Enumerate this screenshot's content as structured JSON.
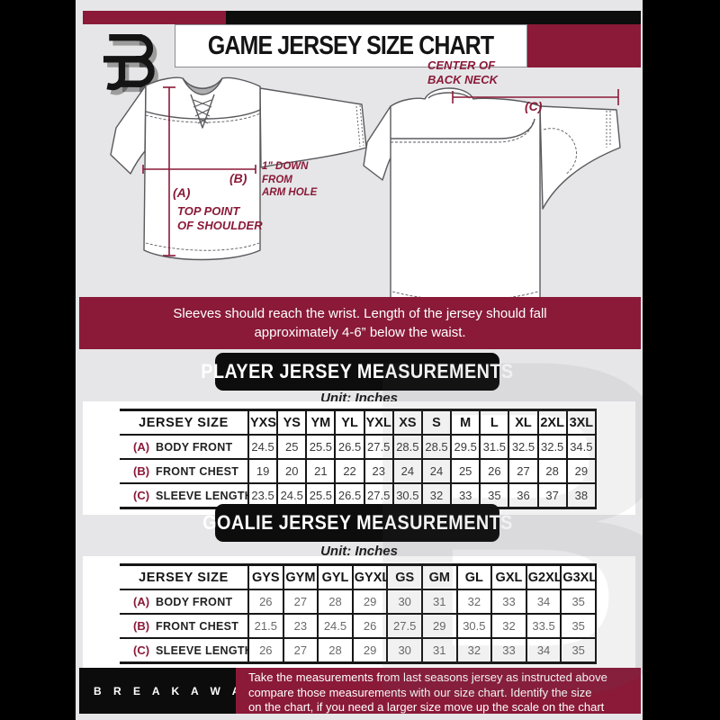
{
  "colors": {
    "maroon": "#8a1a38",
    "ink": "#0d0d0d",
    "background_gray": "#e6e6e8",
    "table_line": "#161616"
  },
  "header": {
    "title": "GAME JERSEY SIZE CHART",
    "logo": "breakaway-b-icon"
  },
  "diagram": {
    "front": {
      "a_label": "(A)",
      "a_caption_lines": [
        "TOP POINT",
        "OF SHOULDER"
      ],
      "b_label": "(B)",
      "b_caption_lines": [
        "1\" DOWN",
        "FROM",
        "ARM HOLE"
      ]
    },
    "back": {
      "c_label": "(C)",
      "c_caption_lines": [
        "CENTER OF",
        "BACK NECK"
      ]
    }
  },
  "notice_banner": {
    "lines": [
      "Sleeves should reach the wrist. Length of the jersey should fall",
      "approximately 4-6” below the waist."
    ]
  },
  "player_table": {
    "title": "PLAYER JERSEY MEASUREMENTS",
    "unit": "Unit: Inches",
    "size_header": "JERSEY SIZE",
    "sizes": [
      "YXS",
      "YS",
      "YM",
      "YL",
      "YXL",
      "XS",
      "S",
      "M",
      "L",
      "XL",
      "2XL",
      "3XL"
    ],
    "rows": [
      {
        "key": "(A)",
        "label": "BODY FRONT",
        "values": [
          "24.5",
          "25",
          "25.5",
          "26.5",
          "27.5",
          "28.5",
          "28.5",
          "29.5",
          "31.5",
          "32.5",
          "32.5",
          "34.5"
        ]
      },
      {
        "key": "(B)",
        "label": "FRONT CHEST",
        "values": [
          "19",
          "20",
          "21",
          "22",
          "23",
          "24",
          "24",
          "25",
          "26",
          "27",
          "28",
          "29"
        ]
      },
      {
        "key": "(C)",
        "label": "SLEEVE LENGTH",
        "values": [
          "23.5",
          "24.5",
          "25.5",
          "26.5",
          "27.5",
          "30.5",
          "32",
          "33",
          "35",
          "36",
          "37",
          "38"
        ]
      }
    ]
  },
  "goalie_table": {
    "title": "GOALIE JERSEY MEASUREMENTS",
    "unit": "Unit: Inches",
    "size_header": "JERSEY SIZE",
    "sizes": [
      "GYS",
      "GYM",
      "GYL",
      "GYXL",
      "GS",
      "GM",
      "GL",
      "GXL",
      "G2XL",
      "G3XL"
    ],
    "rows": [
      {
        "key": "(A)",
        "label": "BODY FRONT",
        "values": [
          "26",
          "27",
          "28",
          "29",
          "30",
          "31",
          "32",
          "33",
          "34",
          "35"
        ]
      },
      {
        "key": "(B)",
        "label": "FRONT CHEST",
        "values": [
          "21.5",
          "23",
          "24.5",
          "26",
          "27.5",
          "29",
          "30.5",
          "32",
          "33.5",
          "35"
        ]
      },
      {
        "key": "(C)",
        "label": "SLEEVE LENGTH",
        "values": [
          "26",
          "27",
          "28",
          "29",
          "30",
          "31",
          "32",
          "33",
          "34",
          "35"
        ]
      }
    ]
  },
  "footer": {
    "brand": "B R E A K A W A Y",
    "lines": [
      "Take the measurements from last seasons jersey as instructed above",
      "compare those measurements  with our size chart. Identify the size",
      "on the chart, if you need a larger size move up the scale on the chart"
    ]
  },
  "watermark": {
    "glyph": "B"
  }
}
